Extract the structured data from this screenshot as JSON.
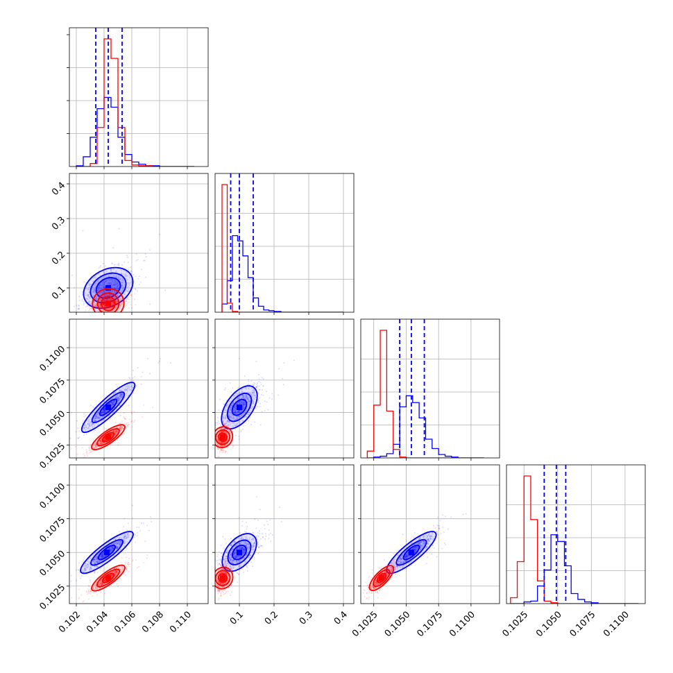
{
  "chart_data": {
    "type": "corner",
    "grid": true,
    "legend": "",
    "colors": {
      "series_a": "#0000ff",
      "series_b": "#ff0000",
      "quantile_lines": "#0000ff"
    },
    "parameters": [
      {
        "range": [
          0.1015,
          0.1115
        ],
        "ticks": [
          0.102,
          0.104,
          0.106,
          0.108,
          0.11
        ],
        "tick_labels": [
          "0.102",
          "0.104",
          "0.106",
          "0.108",
          "0.110"
        ]
      },
      {
        "range": [
          0.03,
          0.43
        ],
        "ticks": [
          0.1,
          0.2,
          0.3,
          0.4
        ],
        "tick_labels": [
          "0.1",
          "0.2",
          "0.3",
          "0.4"
        ]
      },
      {
        "range": [
          0.1015,
          0.1122
        ],
        "ticks": [
          0.1025,
          0.105,
          0.1075,
          0.11
        ],
        "tick_labels": [
          "0.1025",
          "0.1050",
          "0.1075",
          "0.1100"
        ]
      },
      {
        "range": [
          0.1012,
          0.1115
        ],
        "ticks": [
          0.1025,
          0.105,
          0.1075,
          0.11
        ],
        "tick_labels": [
          "0.1025",
          "0.1050",
          "0.1075",
          "0.1100"
        ]
      }
    ],
    "histograms": [
      {
        "param": 0,
        "quantiles": [
          0.1034,
          0.1043,
          0.1053
        ],
        "bins": [
          0.102,
          0.1025,
          0.103,
          0.1035,
          0.104,
          0.1045,
          0.105,
          0.1055,
          0.106,
          0.1065,
          0.107,
          0.1075,
          0.108,
          0.1085,
          0.109,
          0.1095,
          0.11,
          0.1105
        ],
        "series": [
          {
            "name": "",
            "color": "#0000ff",
            "counts": [
              1,
              13,
              39,
              77,
              92,
              79,
              39,
              16,
              6,
              3,
              1,
              1,
              0,
              0,
              0,
              0,
              0
            ]
          },
          {
            "name": "",
            "color": "#ff0000",
            "counts": [
              0,
              0,
              4,
              52,
              170,
              144,
              52,
              8,
              2,
              1,
              1,
              0,
              0,
              0,
              0,
              0,
              0
            ]
          }
        ]
      },
      {
        "param": 1,
        "quantiles": [
          0.075,
          0.1,
          0.14
        ],
        "bins": [
          0.05,
          0.065,
          0.08,
          0.095,
          0.11,
          0.125,
          0.14,
          0.155,
          0.17,
          0.185,
          0.2,
          0.22,
          0.24,
          0.3,
          0.4
        ],
        "series": [
          {
            "name": "",
            "color": "#0000ff",
            "counts": [
              11,
              42,
              102,
              95,
              75,
              46,
              19,
              8,
              3,
              2,
              1,
              0,
              0,
              0
            ]
          },
          {
            "name": "",
            "color": "#ff0000",
            "counts": [
              170,
              12,
              1,
              0,
              0,
              0,
              0,
              0,
              0,
              0,
              0,
              0,
              0,
              0
            ]
          }
        ]
      },
      {
        "param": 2,
        "quantiles": [
          0.1045,
          0.1054,
          0.1064
        ],
        "bins": [
          0.102,
          0.1025,
          0.103,
          0.1035,
          0.104,
          0.1045,
          0.105,
          0.1055,
          0.106,
          0.1065,
          0.107,
          0.1075,
          0.108,
          0.1085,
          0.109,
          0.11,
          0.111
        ],
        "series": [
          {
            "name": "",
            "color": "#0000ff",
            "counts": [
              0,
              1,
              2,
              5,
              16,
              60,
              73,
              65,
              47,
              22,
              11,
              4,
              2,
              1,
              0,
              0
            ]
          },
          {
            "name": "",
            "color": "#ff0000",
            "counts": [
              8,
              62,
              150,
              55,
              10,
              1,
              0,
              0,
              0,
              0,
              0,
              0,
              0,
              0,
              0,
              0
            ]
          }
        ]
      },
      {
        "param": 3,
        "quantiles": [
          0.104,
          0.1049,
          0.1056
        ],
        "bins": [
          0.1015,
          0.102,
          0.1025,
          0.103,
          0.1035,
          0.104,
          0.1045,
          0.105,
          0.1055,
          0.106,
          0.1065,
          0.107,
          0.1075,
          0.108,
          0.109,
          0.111
        ],
        "series": [
          {
            "name": "",
            "color": "#0000ff",
            "counts": [
              0,
              0,
              2,
              3,
              21,
              40,
              82,
              74,
              45,
              12,
              5,
              2,
              1,
              0,
              0
            ]
          },
          {
            "name": "",
            "color": "#ff0000",
            "counts": [
              7,
              50,
              152,
              100,
              27,
              3,
              1,
              0,
              0,
              0,
              0,
              0,
              0,
              0,
              0
            ]
          }
        ]
      }
    ],
    "scatter": [
      {
        "x": 0,
        "y": 1,
        "series": [
          {
            "name": "",
            "color": "#0000ff",
            "center": [
              0.1043,
              0.1
            ],
            "spread": [
              0.00085,
              0.028
            ],
            "rho": 0.45,
            "levels": [
              [
                0.00095,
                0.02
              ],
              [
                0.0014,
                0.03
              ],
              [
                0.00195,
                0.042
              ]
            ]
          },
          {
            "name": "",
            "color": "#ff0000",
            "center": [
              0.1043,
              0.055
            ],
            "spread": [
              0.00055,
              0.008
            ],
            "rho": 0.2,
            "levels": [
              [
                0.0006,
                0.008
              ],
              [
                0.00095,
                0.012
              ],
              [
                0.0014,
                0.017
              ]
            ]
          }
        ]
      },
      {
        "x": 0,
        "y": 2,
        "series": [
          {
            "name": "",
            "color": "#0000ff",
            "center": [
              0.1043,
              0.1054
            ],
            "spread": [
              0.00085,
              0.00085
            ],
            "rho": 0.93,
            "levels": [
              [
                0.0006,
                0.0006
              ],
              [
                0.00115,
                0.00115
              ],
              [
                0.0019,
                0.0019
              ]
            ]
          },
          {
            "name": "",
            "color": "#ff0000",
            "center": [
              0.1043,
              0.1031
            ],
            "spread": [
              0.00055,
              0.00045
            ],
            "rho": 0.9,
            "levels": [
              [
                0.0004,
                0.0003
              ],
              [
                0.0008,
                0.0006
              ],
              [
                0.0012,
                0.0009
              ]
            ]
          }
        ]
      },
      {
        "x": 1,
        "y": 2,
        "series": [
          {
            "name": "",
            "color": "#0000ff",
            "center": [
              0.1,
              0.1054
            ],
            "spread": [
              0.028,
              0.00085
            ],
            "rho": 0.65,
            "levels": [
              [
                0.018,
                0.0006
              ],
              [
                0.03,
                0.0011
              ],
              [
                0.045,
                0.0017
              ]
            ]
          },
          {
            "name": "",
            "color": "#ff0000",
            "center": [
              0.052,
              0.1031
            ],
            "spread": [
              0.008,
              0.00045
            ],
            "rho": 0.3,
            "levels": [
              [
                0.008,
                0.0003
              ],
              [
                0.013,
                0.0006
              ],
              [
                0.018,
                0.0009
              ]
            ]
          }
        ]
      },
      {
        "x": 0,
        "y": 3,
        "series": [
          {
            "name": "",
            "color": "#0000ff",
            "center": [
              0.1042,
              0.105
            ],
            "spread": [
              0.00085,
              0.0007
            ],
            "rho": 0.92,
            "levels": [
              [
                0.0006,
                0.0005
              ],
              [
                0.00115,
                0.0009
              ],
              [
                0.0019,
                0.0015
              ]
            ]
          },
          {
            "name": "",
            "color": "#ff0000",
            "center": [
              0.1043,
              0.1031
            ],
            "spread": [
              0.00055,
              0.00045
            ],
            "rho": 0.9,
            "levels": [
              [
                0.0004,
                0.0003
              ],
              [
                0.0008,
                0.0006
              ],
              [
                0.0012,
                0.0009
              ]
            ]
          }
        ]
      },
      {
        "x": 1,
        "y": 3,
        "series": [
          {
            "name": "",
            "color": "#0000ff",
            "center": [
              0.1,
              0.105
            ],
            "spread": [
              0.028,
              0.0007
            ],
            "rho": 0.6,
            "levels": [
              [
                0.018,
                0.0005
              ],
              [
                0.03,
                0.0009
              ],
              [
                0.045,
                0.0014
              ]
            ]
          },
          {
            "name": "",
            "color": "#ff0000",
            "center": [
              0.052,
              0.1031
            ],
            "spread": [
              0.008,
              0.00045
            ],
            "rho": 0.3,
            "levels": [
              [
                0.008,
                0.0003
              ],
              [
                0.013,
                0.0006
              ],
              [
                0.018,
                0.0009
              ]
            ]
          }
        ]
      },
      {
        "x": 2,
        "y": 3,
        "series": [
          {
            "name": "",
            "color": "#0000ff",
            "center": [
              0.1054,
              0.105
            ],
            "spread": [
              0.00085,
              0.0007
            ],
            "rho": 0.9,
            "levels": [
              [
                0.0006,
                0.0005
              ],
              [
                0.00115,
                0.0009
              ],
              [
                0.0019,
                0.0015
              ]
            ]
          },
          {
            "name": "",
            "color": "#ff0000",
            "center": [
              0.1031,
              0.1031
            ],
            "spread": [
              0.00045,
              0.00045
            ],
            "rho": 0.85,
            "levels": [
              [
                0.0003,
                0.0003
              ],
              [
                0.0006,
                0.0006
              ],
              [
                0.0009,
                0.0009
              ]
            ]
          }
        ]
      }
    ]
  }
}
